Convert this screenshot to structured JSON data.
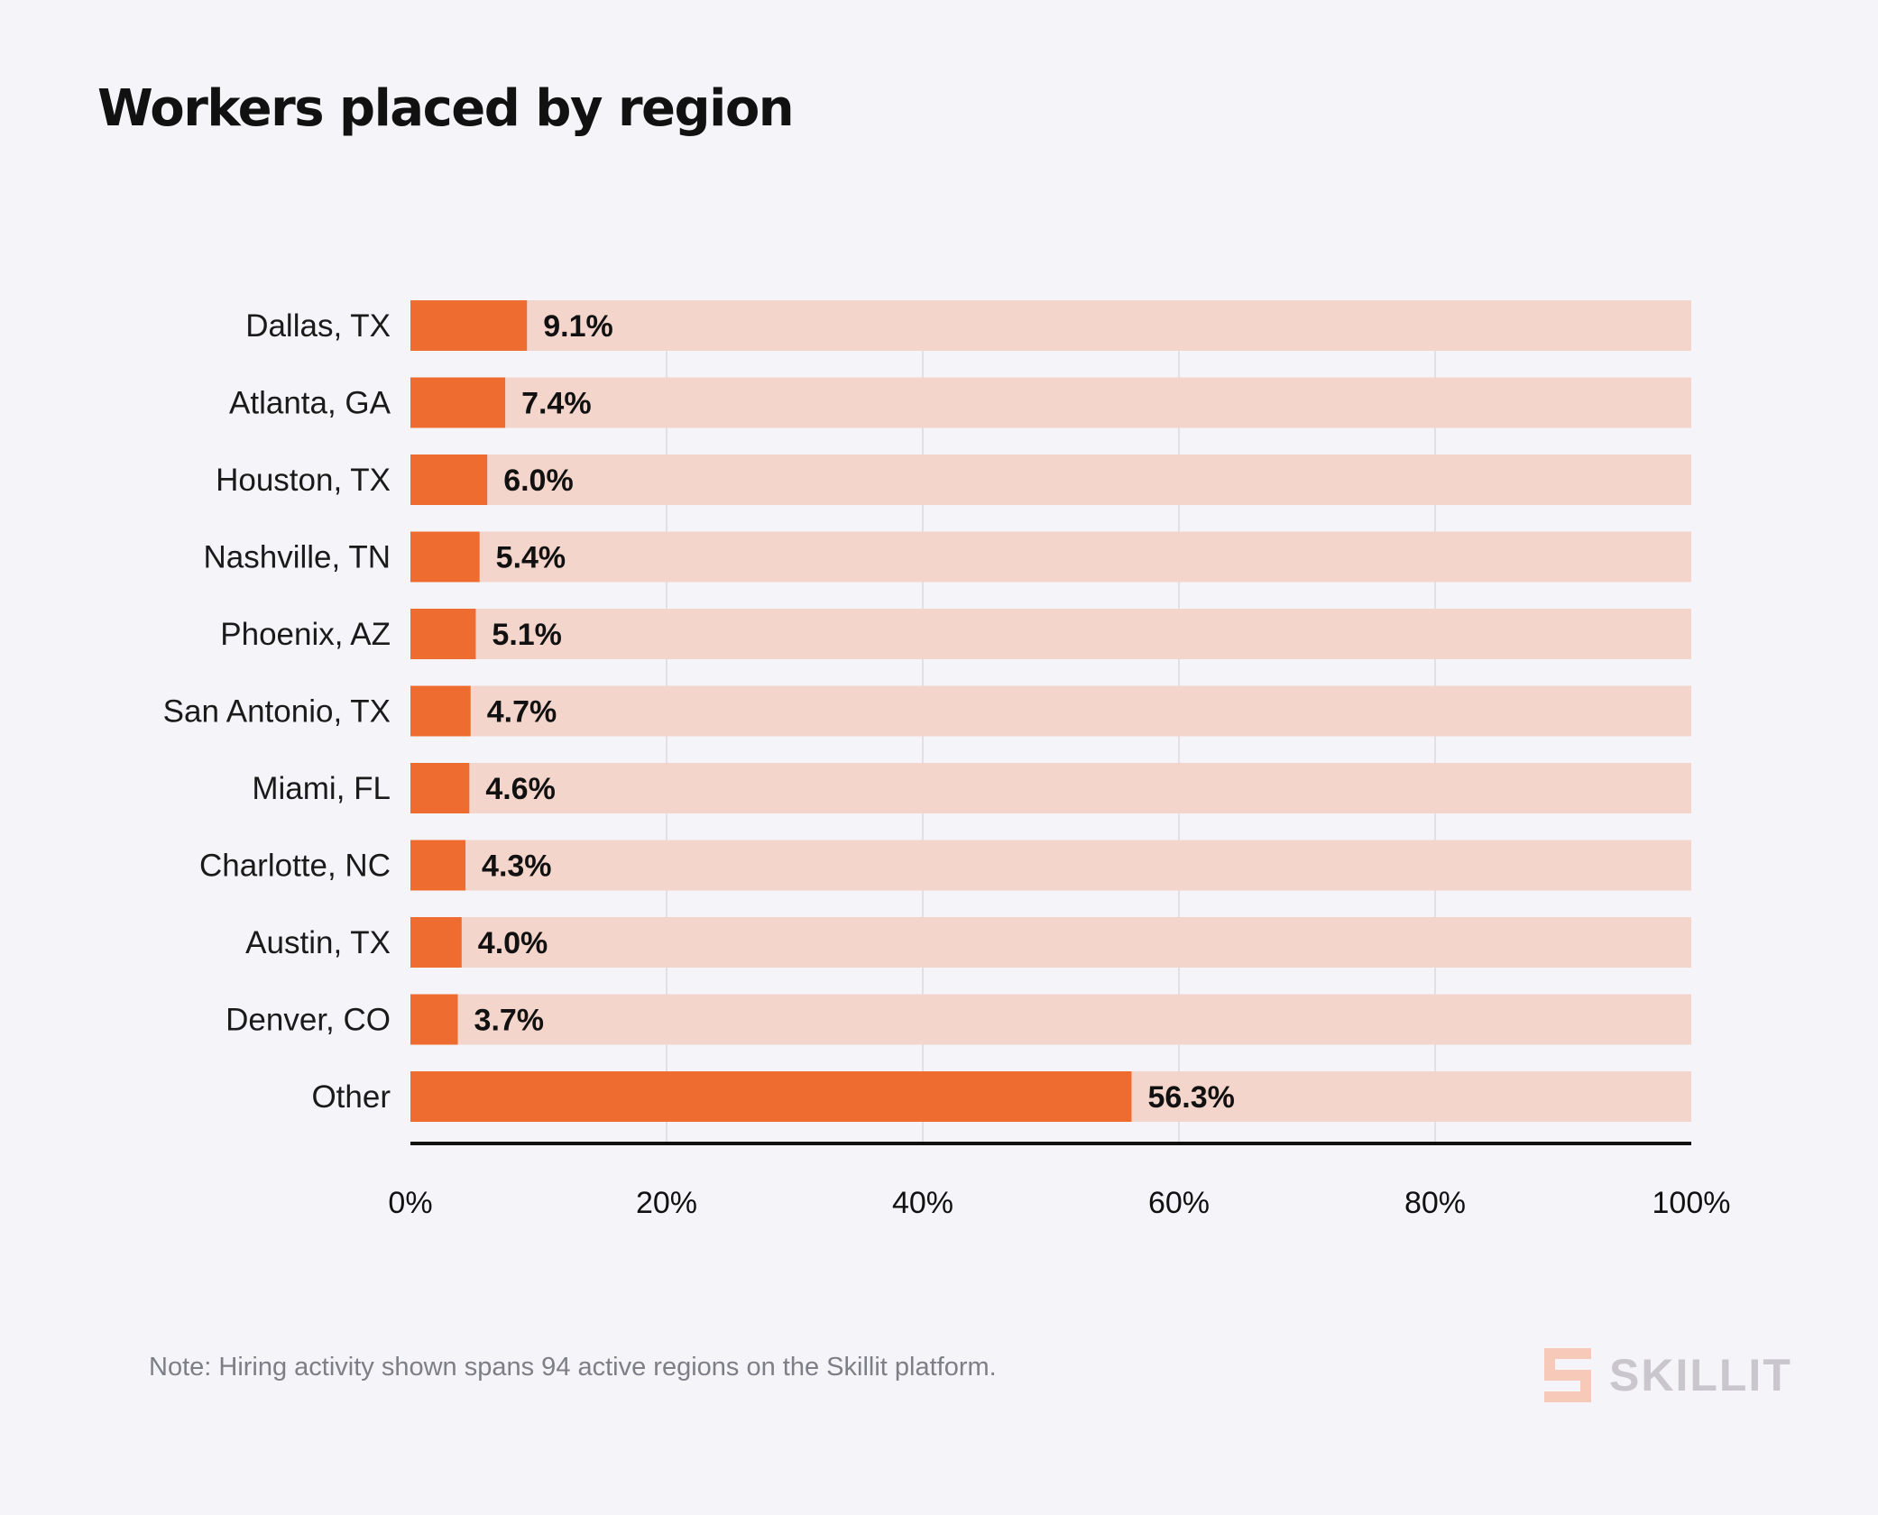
{
  "colors": {
    "background": "#f5f4f9",
    "bar": "#ee6c30",
    "track": "#f4d5cb",
    "grid": "#e2e0e6",
    "axis": "#111111",
    "logo_mark": "#f6c9b8",
    "logo_text": "#c9c6ce"
  },
  "chart_data": {
    "type": "bar",
    "orientation": "horizontal",
    "title": "Workers placed by region",
    "xlabel": "",
    "ylabel": "",
    "categories": [
      "Dallas, TX",
      "Atlanta, GA",
      "Houston, TX",
      "Nashville, TN",
      "Phoenix, AZ",
      "San Antonio, TX",
      "Miami, FL",
      "Charlotte, NC",
      "Austin, TX",
      "Denver, CO",
      "Other"
    ],
    "values": [
      9.1,
      7.4,
      6.0,
      5.4,
      5.1,
      4.7,
      4.6,
      4.3,
      4.0,
      3.7,
      56.3
    ],
    "value_labels": [
      "9.1%",
      "7.4%",
      "6.0%",
      "5.4%",
      "5.1%",
      "4.7%",
      "4.6%",
      "4.3%",
      "4.0%",
      "3.7%",
      "56.3%"
    ],
    "xlim": [
      0,
      100
    ],
    "xticks": [
      0,
      20,
      40,
      60,
      80,
      100
    ],
    "xtick_labels": [
      "0%",
      "20%",
      "40%",
      "60%",
      "80%",
      "100%"
    ],
    "grid": "vertical",
    "legend": "none"
  },
  "note": "Note: Hiring activity shown spans 94 active regions on the Skillit platform.",
  "brand": {
    "name": "SKILLIT",
    "icon": "skillit-s-logo-icon"
  }
}
